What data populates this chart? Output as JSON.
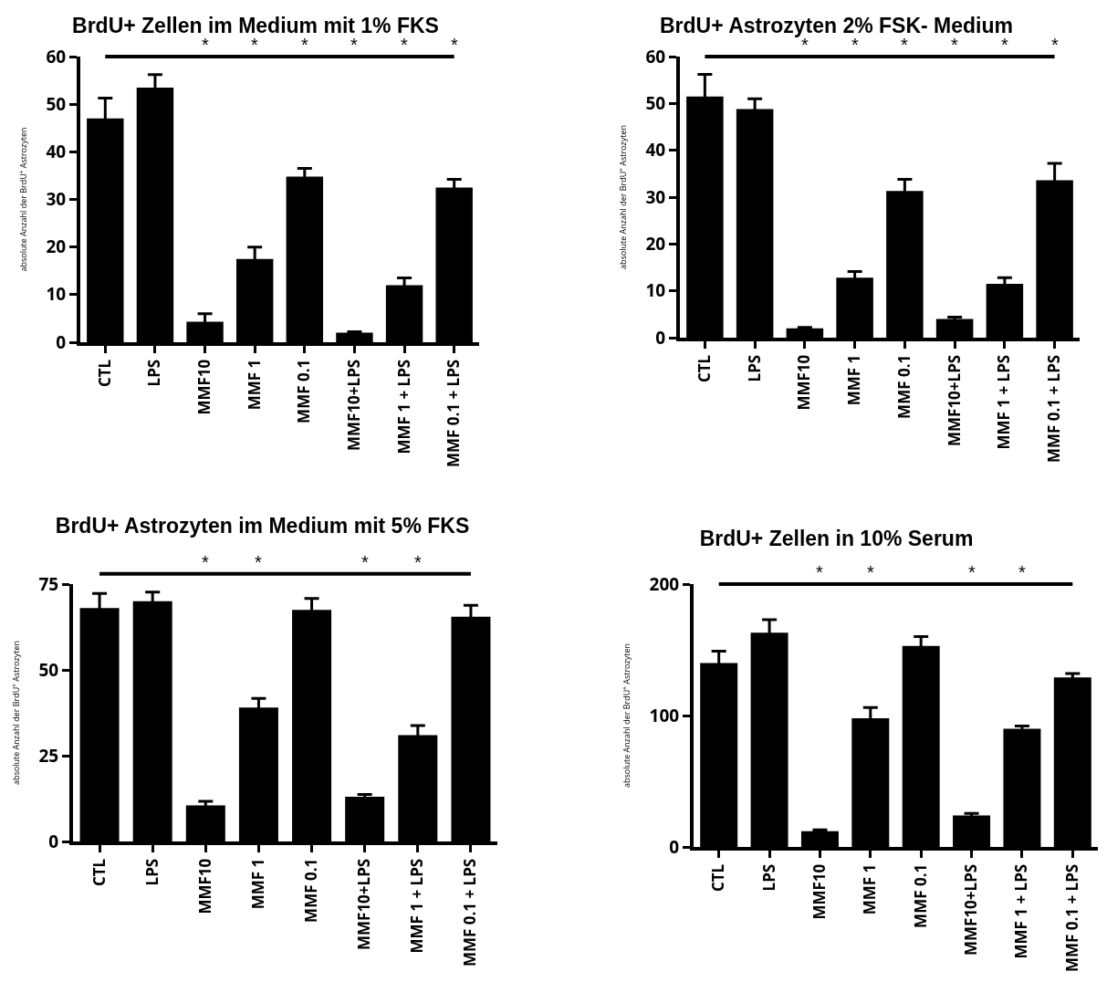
{
  "chart_data": [
    {
      "type": "bar",
      "title": "BrdU+ Zellen im Medium mit 1% FKS",
      "ylabel": "absolute Anzahl der BrdU$^{+}$ Astrozyten",
      "categories": [
        "CTL",
        "LPS",
        "MMF10",
        "MMF 1",
        "MMF 0.1",
        "MMF10+LPS",
        "MMF 1 + LPS",
        "MMF 0.1 + LPS"
      ],
      "color": "#000000",
      "values": [
        47,
        53.5,
        4.3,
        17.5,
        34.8,
        2,
        12,
        32.5
      ],
      "errors": [
        4.3,
        2.7,
        1.7,
        2.5,
        1.7,
        0.2,
        1.5,
        1.7
      ],
      "ylim": [
        0,
        60
      ],
      "yticks": [
        0,
        10,
        20,
        30,
        40,
        50,
        60
      ],
      "annotations": [
        "*",
        "*",
        "*",
        "*",
        "*",
        "*"
      ]
    },
    {
      "type": "bar",
      "title": "BrdU+ Astrozyten 2% FSK- Medium",
      "ylabel": "absolute Anzahl der BrdU$^{+}$ Astrozyten",
      "categories": [
        "CTL",
        "LPS",
        "MMF10",
        "MMF 1",
        "MMF 0.1",
        "MMF10+LPS",
        "MMF 1 + LPS",
        "MMF 0.1 + LPS"
      ],
      "color": "#000000",
      "values": [
        51.5,
        48.8,
        2,
        12.8,
        31.3,
        4,
        11.5,
        33.6
      ],
      "errors": [
        4.7,
        2.2,
        0.2,
        1.3,
        2.5,
        0.4,
        1.3,
        3.6
      ],
      "ylim": [
        0,
        60
      ],
      "yticks": [
        0,
        10,
        20,
        30,
        40,
        50,
        60
      ],
      "annotations": [
        "*",
        "*",
        "*",
        "*",
        "*",
        "*"
      ]
    },
    {
      "type": "bar",
      "title": "BrdU+ Astrozyten im Medium mit 5% FKS",
      "ylabel": "absolute Anzahl der BrdU$^{+}$ Astrozyten",
      "categories": [
        "CTL",
        "LPS",
        "MMF10",
        "MMF 1",
        "MMF 0.1",
        "MMF10+LPS",
        "MMF 1 + LPS",
        "MMF 0.1 + LPS"
      ],
      "color": "#000000",
      "values": [
        68,
        70,
        10.5,
        39,
        67.5,
        13,
        31,
        65.5
      ],
      "errors": [
        4.3,
        2.7,
        1.2,
        2.7,
        3.3,
        0.7,
        2.8,
        3.3
      ],
      "ylim": [
        0,
        75
      ],
      "yticks": [
        0,
        25,
        50,
        75
      ],
      "annotations": [
        "*",
        "*",
        "*",
        "*"
      ]
    },
    {
      "type": "bar",
      "title": "BrdU+ Zellen in 10% Serum",
      "ylabel": "absolute Anzahl der BrdU$^{+}$ Astrozyten",
      "categories": [
        "CTL",
        "LPS",
        "MMF10",
        "MMF 1",
        "MMF 0.1",
        "MMF10+LPS",
        "MMF 1 + LPS",
        "MMF 0.1 + LPS"
      ],
      "color": "#000000",
      "values": [
        140,
        163,
        12,
        98,
        153,
        24,
        90,
        129
      ],
      "errors": [
        9,
        10,
        1,
        8,
        7,
        1.5,
        2,
        3
      ],
      "ylim": [
        0,
        200
      ],
      "yticks": [
        0,
        100,
        200
      ],
      "annotations": [
        "*",
        "*",
        "*",
        "*"
      ]
    }
  ]
}
